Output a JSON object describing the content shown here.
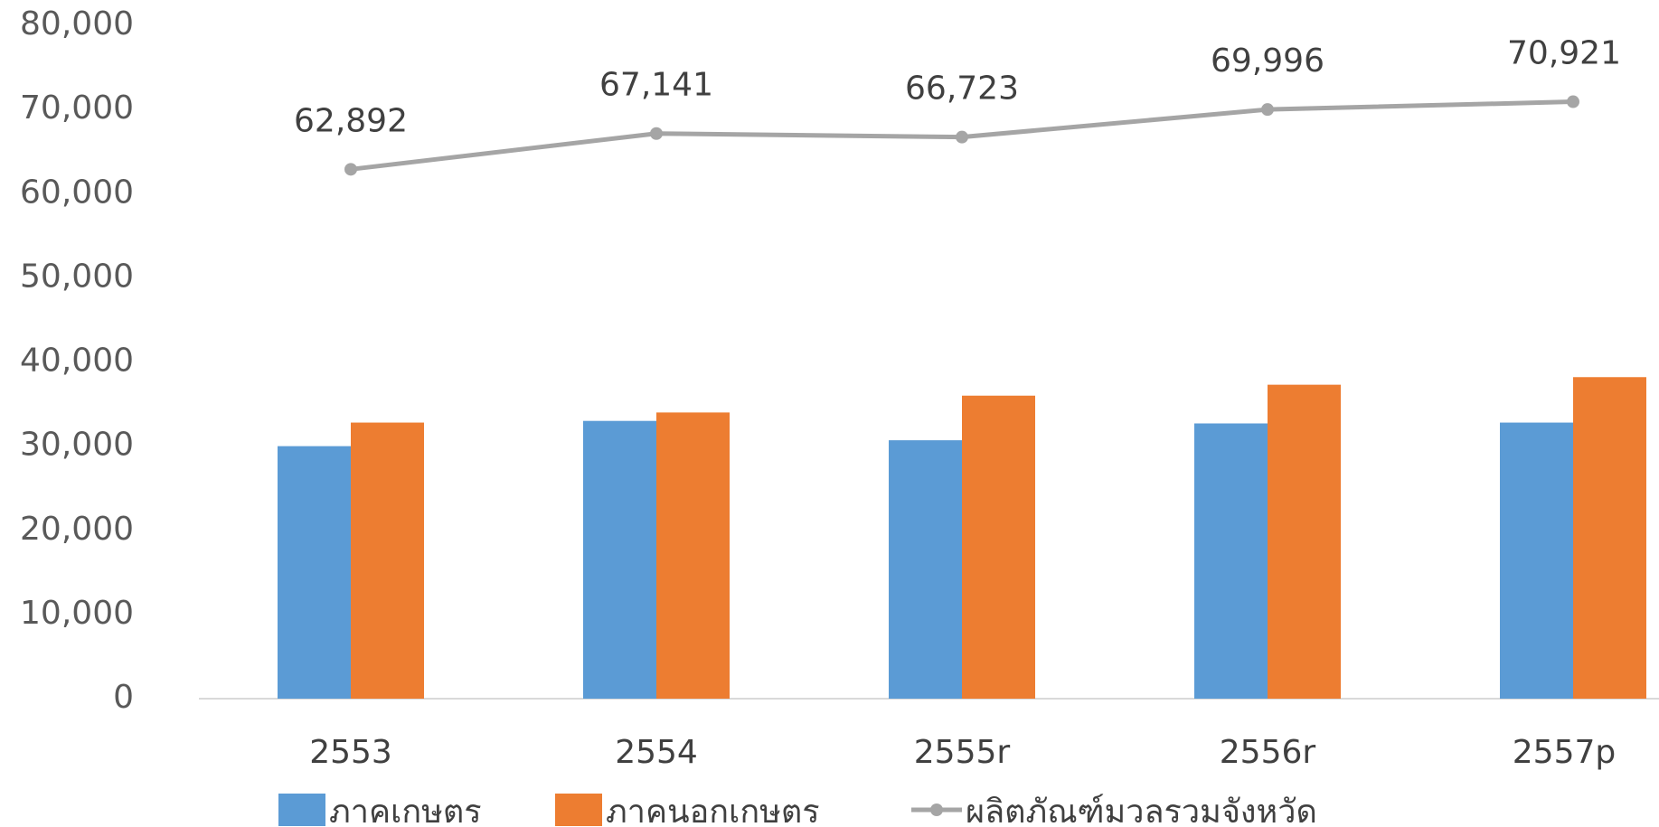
{
  "chart_data": {
    "type": "bar",
    "categories": [
      "2553",
      "2554",
      "2555r",
      "2556r",
      "2557p"
    ],
    "ylim": [
      0,
      80000
    ],
    "y_ticks": [
      "0",
      "10,000",
      "20,000",
      "30,000",
      "40,000",
      "50,000",
      "60,000",
      "70,000",
      "80,000"
    ],
    "series": [
      {
        "name": "ภาคเกษตร",
        "type": "bar",
        "color": "#5B9BD5",
        "values": [
          30000,
          33000,
          30700,
          32700,
          32800
        ]
      },
      {
        "name": "ภาคนอกเกษตร",
        "type": "bar",
        "color": "#ED7D31",
        "values": [
          32800,
          34000,
          36000,
          37300,
          38200
        ]
      },
      {
        "name": "ผลิตภัณฑ์มวลรวมจังหวัด",
        "type": "line",
        "color": "#A5A5A5",
        "values": [
          62892,
          67141,
          66723,
          69996,
          70921
        ],
        "data_labels": [
          "62,892",
          "67,141",
          "66,723",
          "69,996",
          "70,921"
        ]
      }
    ],
    "legend": "bottom",
    "grid": false
  }
}
